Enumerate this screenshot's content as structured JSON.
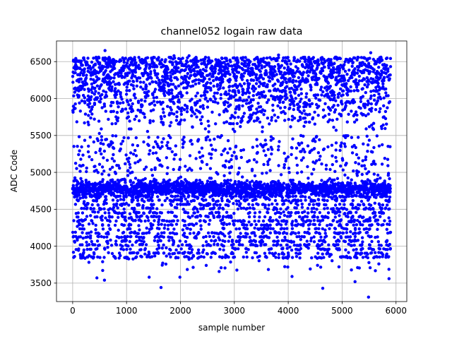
{
  "chart_data": {
    "type": "scatter",
    "title": "channel052 logain raw data",
    "xlabel": "sample number",
    "ylabel": "ADC Code",
    "xlim": [
      -300,
      6200
    ],
    "ylim": [
      3250,
      6780
    ],
    "xticks": [
      0,
      1000,
      2000,
      3000,
      4000,
      5000,
      6000
    ],
    "yticks": [
      3500,
      4000,
      4500,
      5000,
      5500,
      6000,
      6500
    ],
    "grid": true,
    "marker_color": "#0000ff",
    "n_points": 5900,
    "distribution": {
      "x_range": [
        0,
        5900
      ],
      "dense_band_center": 4780,
      "dense_band_spread": 120,
      "lower_band": [
        3850,
        4700
      ],
      "upper_band": [
        5500,
        6560
      ],
      "sparse_middle": [
        4950,
        5500
      ]
    },
    "notable_points": [
      {
        "x": 600,
        "y": 6650
      },
      {
        "x": 5530,
        "y": 6620
      },
      {
        "x": 1640,
        "y": 3440
      },
      {
        "x": 4640,
        "y": 3430
      },
      {
        "x": 5490,
        "y": 3310
      },
      {
        "x": 5240,
        "y": 3520
      },
      {
        "x": 590,
        "y": 3540
      },
      {
        "x": 450,
        "y": 3570
      },
      {
        "x": 1420,
        "y": 3580
      },
      {
        "x": 4070,
        "y": 3590
      },
      {
        "x": 5870,
        "y": 3560
      },
      {
        "x": 1990,
        "y": 3580
      },
      {
        "x": 1880,
        "y": 6580
      },
      {
        "x": 3820,
        "y": 6590
      },
      {
        "x": 2160,
        "y": 6580
      }
    ]
  }
}
